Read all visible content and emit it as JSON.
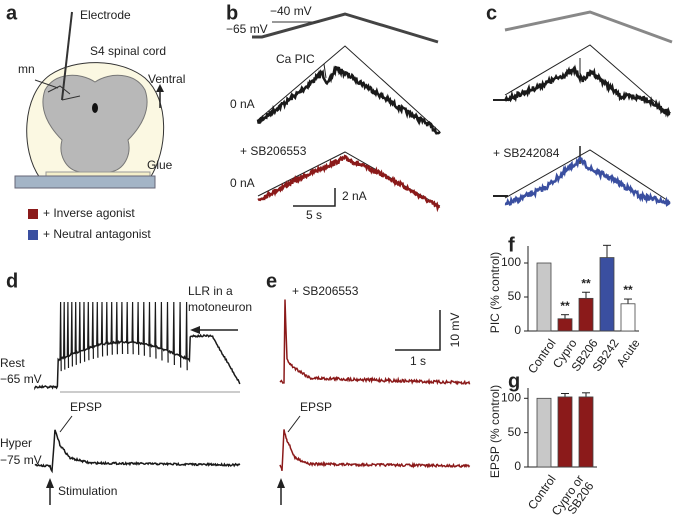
{
  "panel_labels": [
    "a",
    "b",
    "c",
    "d",
    "e",
    "f",
    "g"
  ],
  "panel_a": {
    "electrode": "Electrode",
    "tissue": "S4 spinal cord",
    "neuron": "mn",
    "direction": "Ventral",
    "glue": "Glue",
    "legend": [
      "+ Inverse agonist",
      "+ Neutral antagonist"
    ]
  },
  "panel_b": {
    "holding": "−65 mV",
    "peak": "−40 mV",
    "pic": "Ca PIC",
    "zero_top": "0 nA",
    "drug": "+ SB206553",
    "zero_bottom": "0 nA",
    "scale_current": "2 nA",
    "scale_time": "5 s"
  },
  "panel_c": {
    "drug": "+ SB242084"
  },
  "panel_d": {
    "llr": "LLR in a",
    "llr2": "motoneuron",
    "rest": "Rest",
    "rest_v": "−65 mV",
    "epsp": "EPSP",
    "hyper": "Hyper",
    "hyper_v": "−75 mV",
    "stim": "Stimulation"
  },
  "panel_e": {
    "drug": "+ SB206553",
    "epsp": "EPSP",
    "scale_time": "1 s",
    "scale_voltage": "10 mV"
  },
  "chart_data": [
    {
      "type": "bar",
      "y_label": "PIC (% control)",
      "categories": [
        "Control",
        "Cypro",
        "SB206",
        "SB242",
        "Acute"
      ],
      "values": [
        100,
        18,
        48,
        108,
        40
      ],
      "errors": [
        null,
        6,
        9,
        18,
        7
      ],
      "colors": [
        "#c8c8c8",
        "#8b1a1a",
        "#8b1a1a",
        "#3a4fa0",
        "#ffffff"
      ],
      "significance": [
        null,
        "**",
        "**",
        null,
        "**"
      ],
      "ylim": [
        0,
        125
      ],
      "yticks": [
        0,
        50,
        100
      ]
    },
    {
      "type": "bar",
      "y_label": "EPSP (% control)",
      "categories": [
        "Control",
        null,
        "Cypro or SB206"
      ],
      "values": [
        100,
        102,
        102
      ],
      "errors": [
        null,
        5,
        6
      ],
      "colors": [
        "#c8c8c8",
        "#8b1a1a",
        "#8b1a1a"
      ],
      "ylim": [
        0,
        115
      ],
      "yticks": [
        0,
        50,
        100
      ]
    }
  ]
}
